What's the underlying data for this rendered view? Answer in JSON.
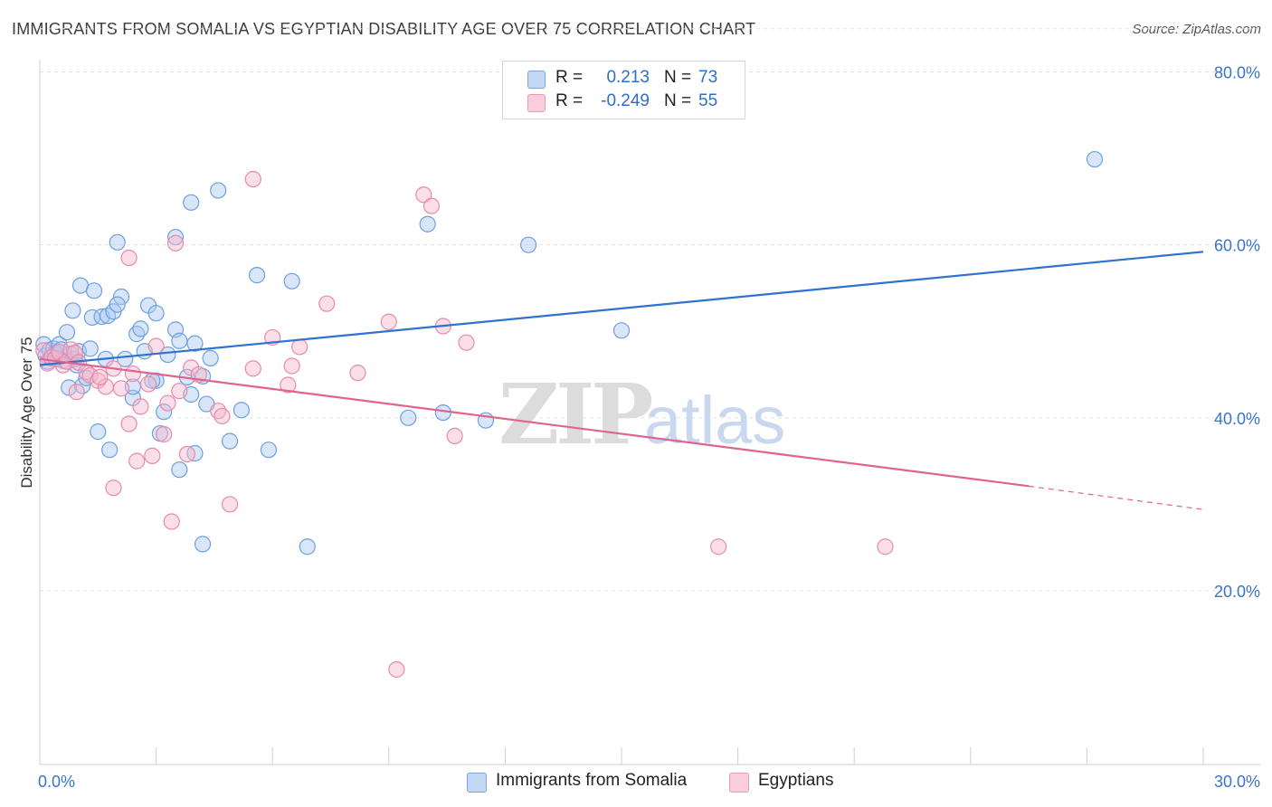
{
  "title": "IMMIGRANTS FROM SOMALIA VS EGYPTIAN DISABILITY AGE OVER 75 CORRELATION CHART",
  "source": "Source: ZipAtlas.com",
  "watermark": {
    "zip": "ZIP",
    "atlas": "atlas"
  },
  "legend": {
    "r_label": "R =",
    "n_label": "N =",
    "rows": [
      {
        "r": "0.213",
        "n": "73"
      },
      {
        "r": "-0.249",
        "n": "55"
      }
    ]
  },
  "colors": {
    "blue_fill": "#a9c7f0",
    "blue_stroke": "#6e9fe0",
    "blue_line": "#2f72cf",
    "pink_fill": "#f5b8cd",
    "pink_stroke": "#e88aab",
    "pink_line": "#e0648f",
    "tick_text": "#3a74c8"
  },
  "chart_data": {
    "type": "scatter",
    "title": "IMMIGRANTS FROM SOMALIA VS EGYPTIAN DISABILITY AGE OVER 75 CORRELATION CHART",
    "xlabel": "",
    "ylabel": "Disability Age Over 75",
    "xlim": [
      0,
      30
    ],
    "ylim": [
      0,
      85
    ],
    "x_tick_labels": [
      "0.0%",
      "30.0%"
    ],
    "y_tick_labels": [
      "20.0%",
      "40.0%",
      "60.0%",
      "80.0%"
    ],
    "y_ticks": [
      20,
      40,
      60,
      80
    ],
    "grid": true,
    "legend_position": "top-center",
    "series": [
      {
        "name": "Immigrants from Somalia",
        "color": "#6e9fe0",
        "points": [
          [
            0.1,
            48.5
          ],
          [
            0.15,
            47.2
          ],
          [
            0.2,
            46.5
          ],
          [
            0.25,
            47.8
          ],
          [
            0.3,
            46.9
          ],
          [
            0.35,
            48.0
          ],
          [
            0.4,
            47.5
          ],
          [
            0.45,
            46.8
          ],
          [
            0.5,
            48.5
          ],
          [
            0.55,
            47.9
          ],
          [
            0.6,
            46.6
          ],
          [
            0.7,
            49.9
          ],
          [
            0.8,
            47.4
          ],
          [
            0.9,
            46.8
          ],
          [
            1.0,
            47.7
          ],
          [
            0.85,
            52.4
          ],
          [
            1.05,
            55.3
          ],
          [
            1.4,
            54.7
          ],
          [
            1.35,
            51.6
          ],
          [
            1.6,
            51.7
          ],
          [
            1.75,
            51.8
          ],
          [
            1.9,
            52.3
          ],
          [
            2.1,
            54.0
          ],
          [
            2.0,
            53.1
          ],
          [
            2.8,
            53.0
          ],
          [
            2.5,
            49.7
          ],
          [
            3.0,
            52.1
          ],
          [
            2.6,
            50.3
          ],
          [
            3.5,
            50.2
          ],
          [
            3.6,
            48.9
          ],
          [
            4.0,
            48.6
          ],
          [
            4.4,
            46.9
          ],
          [
            1.3,
            48.0
          ],
          [
            1.7,
            46.8
          ],
          [
            2.2,
            46.8
          ],
          [
            2.7,
            47.7
          ],
          [
            3.3,
            47.3
          ],
          [
            3.8,
            44.7
          ],
          [
            4.2,
            44.8
          ],
          [
            3.0,
            44.3
          ],
          [
            0.75,
            43.5
          ],
          [
            1.1,
            43.7
          ],
          [
            2.4,
            42.3
          ],
          [
            2.9,
            44.3
          ],
          [
            3.2,
            40.7
          ],
          [
            3.9,
            42.7
          ],
          [
            4.3,
            41.6
          ],
          [
            5.2,
            40.9
          ],
          [
            1.5,
            38.4
          ],
          [
            1.8,
            36.3
          ],
          [
            3.1,
            38.2
          ],
          [
            3.6,
            34.0
          ],
          [
            4.0,
            35.9
          ],
          [
            4.9,
            37.3
          ],
          [
            5.9,
            36.3
          ],
          [
            2.0,
            60.3
          ],
          [
            3.5,
            60.9
          ],
          [
            3.9,
            64.9
          ],
          [
            4.6,
            66.3
          ],
          [
            5.6,
            56.5
          ],
          [
            6.5,
            55.8
          ],
          [
            10.0,
            62.4
          ],
          [
            10.4,
            40.6
          ],
          [
            11.5,
            39.7
          ],
          [
            12.6,
            60.0
          ],
          [
            15.0,
            50.1
          ],
          [
            27.2,
            69.9
          ],
          [
            4.2,
            25.4
          ],
          [
            6.9,
            25.1
          ],
          [
            9.5,
            40.0
          ],
          [
            2.4,
            43.6
          ],
          [
            1.2,
            44.6
          ],
          [
            0.95,
            46.1
          ]
        ]
      },
      {
        "name": "Egyptians",
        "color": "#e88aab",
        "points": [
          [
            0.1,
            47.8
          ],
          [
            0.2,
            46.3
          ],
          [
            0.3,
            47.0
          ],
          [
            0.4,
            46.9
          ],
          [
            0.5,
            47.6
          ],
          [
            0.6,
            46.1
          ],
          [
            0.7,
            46.5
          ],
          [
            0.8,
            47.9
          ],
          [
            0.9,
            47.5
          ],
          [
            1.0,
            46.4
          ],
          [
            1.2,
            45.3
          ],
          [
            1.3,
            44.9
          ],
          [
            1.5,
            44.3
          ],
          [
            1.7,
            43.6
          ],
          [
            1.9,
            45.7
          ],
          [
            2.1,
            43.4
          ],
          [
            2.4,
            45.1
          ],
          [
            2.6,
            41.3
          ],
          [
            2.8,
            43.9
          ],
          [
            3.0,
            48.3
          ],
          [
            3.3,
            41.7
          ],
          [
            3.6,
            43.1
          ],
          [
            3.9,
            45.8
          ],
          [
            4.1,
            45.0
          ],
          [
            0.95,
            43.0
          ],
          [
            1.55,
            44.7
          ],
          [
            2.3,
            39.3
          ],
          [
            2.5,
            35.0
          ],
          [
            2.9,
            35.6
          ],
          [
            3.2,
            38.1
          ],
          [
            3.8,
            35.8
          ],
          [
            4.6,
            40.8
          ],
          [
            1.9,
            31.9
          ],
          [
            3.4,
            28.0
          ],
          [
            4.9,
            30.0
          ],
          [
            2.3,
            58.5
          ],
          [
            3.5,
            60.2
          ],
          [
            5.5,
            67.6
          ],
          [
            6.0,
            49.3
          ],
          [
            6.7,
            48.2
          ],
          [
            6.5,
            46.0
          ],
          [
            6.4,
            43.8
          ],
          [
            5.5,
            45.7
          ],
          [
            8.2,
            45.2
          ],
          [
            7.4,
            53.2
          ],
          [
            9.0,
            51.1
          ],
          [
            9.9,
            65.8
          ],
          [
            10.1,
            64.5
          ],
          [
            10.4,
            50.6
          ],
          [
            11.0,
            48.7
          ],
          [
            10.7,
            37.9
          ],
          [
            17.5,
            25.1
          ],
          [
            21.8,
            25.1
          ],
          [
            9.2,
            10.9
          ],
          [
            4.7,
            40.2
          ]
        ]
      }
    ],
    "trendlines": [
      {
        "series": "Immigrants from Somalia",
        "x": [
          0,
          30
        ],
        "y": [
          46.1,
          59.2
        ],
        "style": "solid"
      },
      {
        "series": "Egyptians",
        "x": [
          0,
          25.5
        ],
        "y": [
          46.8,
          32.1
        ],
        "style": "solid"
      },
      {
        "series": "Egyptians",
        "x": [
          25.5,
          30
        ],
        "y": [
          32.1,
          29.4
        ],
        "style": "dashed"
      }
    ]
  }
}
